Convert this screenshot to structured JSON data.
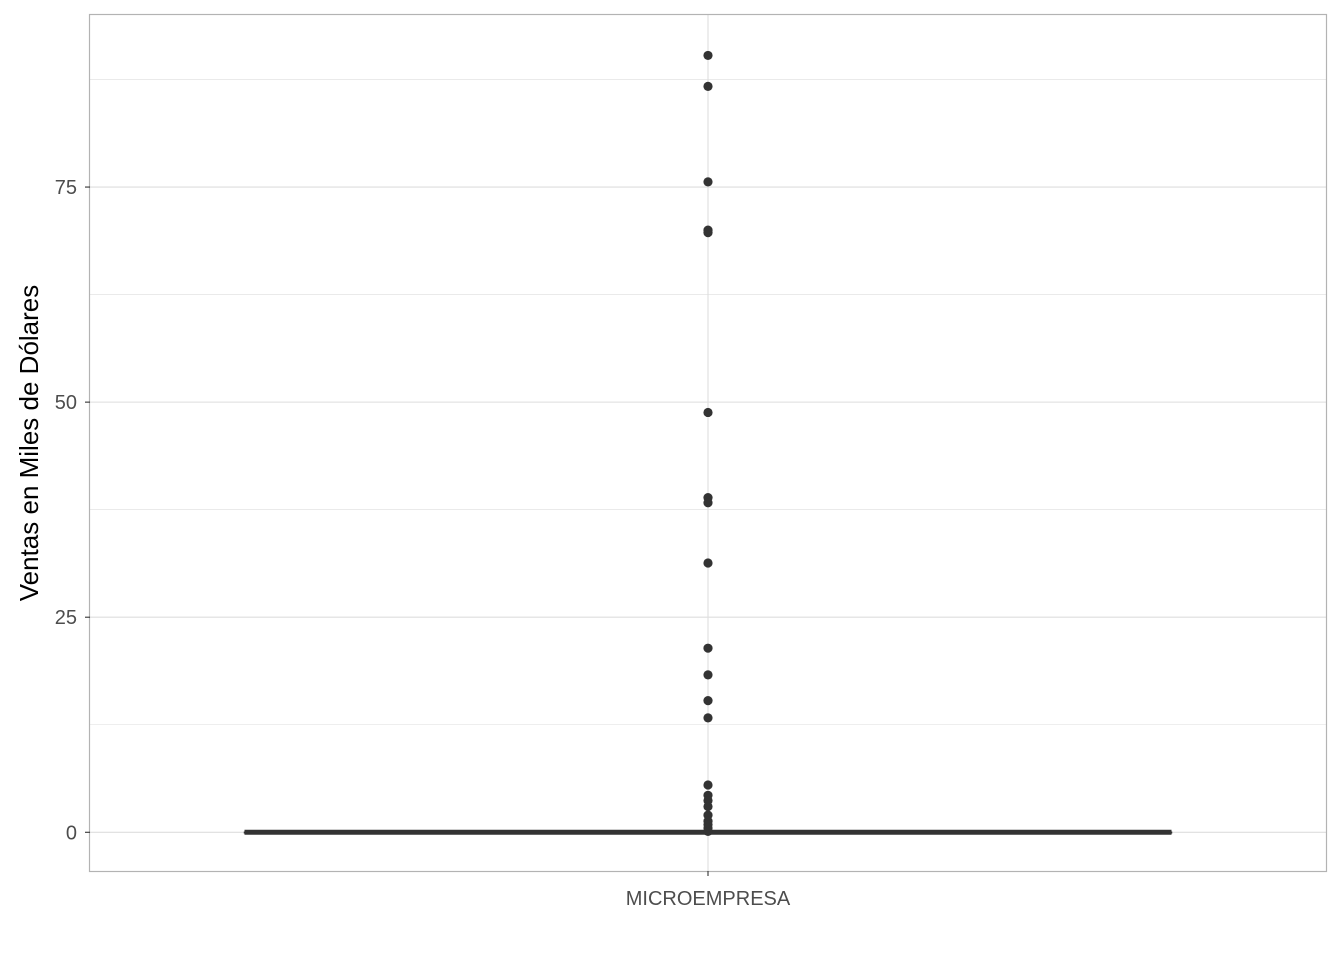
{
  "chart_data": {
    "type": "boxplot",
    "xlabel": "",
    "ylabel": "Ventas en Miles de Dólares",
    "categories": [
      "MICROEMPRESA"
    ],
    "ylim": [
      -4.5,
      95
    ],
    "y_ticks": [
      0,
      25,
      50,
      75
    ],
    "grid": true,
    "box": {
      "category": "MICROEMPRESA",
      "min": 0,
      "q1": 0,
      "median": 0,
      "q3": 0,
      "max": 0
    },
    "outliers": [
      90.3,
      86.7,
      75.6,
      70.0,
      69.7,
      48.8,
      38.9,
      38.3,
      31.3,
      21.4,
      18.3,
      15.3,
      13.3,
      5.5,
      4.3,
      3.7,
      3.0,
      2.0,
      1.3,
      0.9,
      0.5,
      0.1
    ],
    "colors": {
      "points": "#333333",
      "box": "#333333",
      "grid": "#dedede",
      "border": "#b3b3b3"
    }
  }
}
